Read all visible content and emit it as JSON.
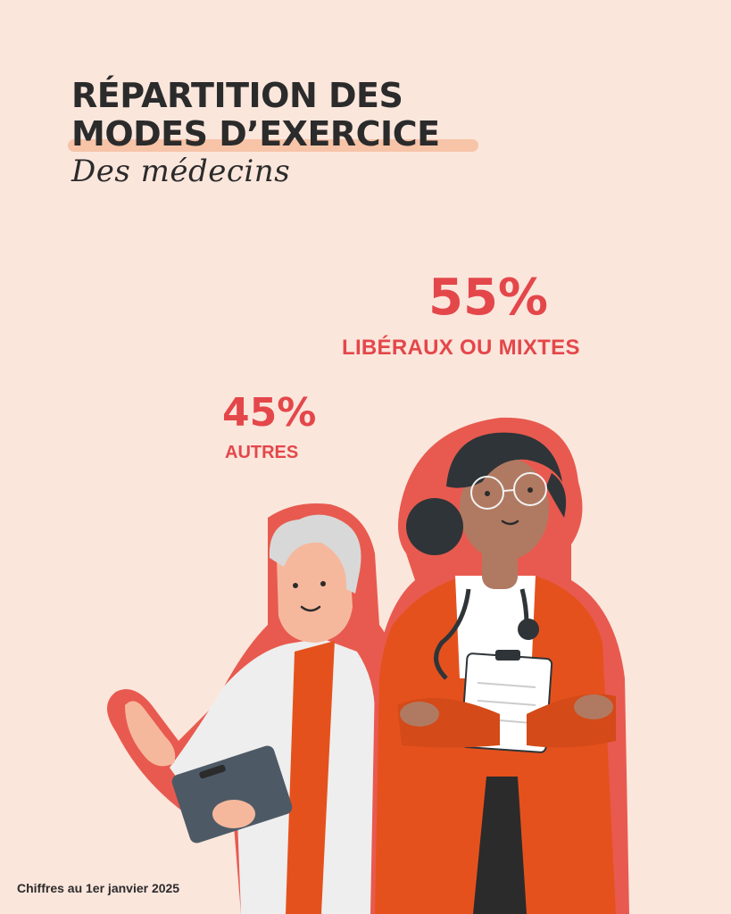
{
  "header": {
    "title_line1": "RÉPARTITION DES",
    "title_line2": "MODES D’EXERCICE",
    "subtitle": "Des médecins"
  },
  "stats": [
    {
      "value": "55%",
      "label": "LIBÉRAUX OU MIXTES"
    },
    {
      "value": "45%",
      "label": "AUTRES"
    }
  ],
  "footer": {
    "note": "Chiffres au 1er janvier 2025"
  },
  "colors": {
    "background": "#fbe6dc",
    "accent": "#e4474a",
    "coat_orange": "#e5511d",
    "underline": "#f7c4a8"
  },
  "illustration": {
    "icons": [
      "male-doctor-illustration",
      "female-doctor-illustration",
      "clipboard-icon",
      "stethoscope-icon"
    ]
  }
}
